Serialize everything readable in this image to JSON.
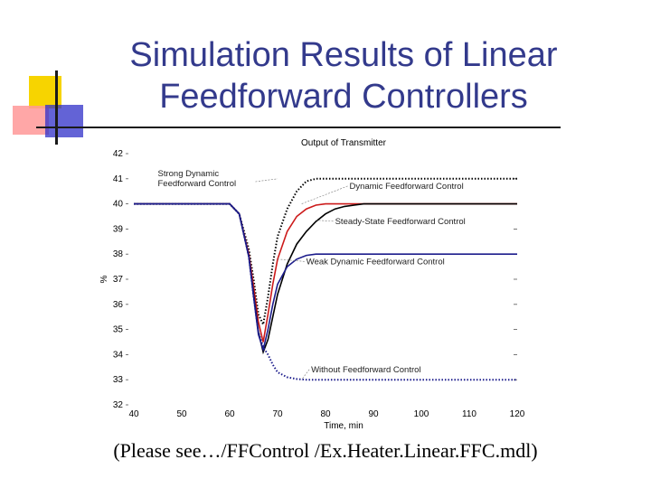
{
  "slide": {
    "title": "Simulation Results of Linear Feedforward Controllers",
    "caption": "(Please see…/FFControl /Ex.Heater.Linear.FFC.mdl)"
  },
  "chart_data": {
    "type": "line",
    "title": "Output of Transmitter",
    "xlabel": "Time, min",
    "ylabel": "%",
    "xlim": [
      40,
      120
    ],
    "ylim": [
      32,
      42
    ],
    "xticks": [
      40,
      50,
      60,
      70,
      80,
      90,
      100,
      110,
      120
    ],
    "yticks": [
      32,
      33,
      34,
      35,
      36,
      37,
      38,
      39,
      40,
      41,
      42
    ],
    "grid": false,
    "series": [
      {
        "name": "Strong Dynamic Feedforward Control",
        "color": "#000000",
        "style": "dotted",
        "x": [
          40,
          60,
          62,
          64,
          65,
          66,
          67,
          68,
          69,
          70,
          72,
          74,
          76,
          78,
          80,
          85,
          90,
          100,
          120
        ],
        "y": [
          40,
          40,
          39.6,
          38.2,
          37.0,
          35.6,
          35.2,
          36.3,
          37.6,
          38.7,
          39.8,
          40.5,
          40.9,
          41.0,
          41.0,
          41.0,
          41.0,
          41.0,
          41.0
        ]
      },
      {
        "name": "Dynamic Feedforward Control",
        "color": "#cc1a1a",
        "style": "solid",
        "x": [
          40,
          60,
          62,
          64,
          65,
          66,
          67,
          68,
          69,
          70,
          72,
          74,
          76,
          78,
          80,
          85,
          90,
          100,
          120
        ],
        "y": [
          40,
          40,
          39.6,
          38.0,
          36.7,
          35.3,
          34.5,
          35.6,
          36.8,
          37.8,
          38.9,
          39.5,
          39.8,
          39.95,
          40.0,
          40.0,
          40.0,
          40.0,
          40.0
        ]
      },
      {
        "name": "Steady-State Feedforward Control",
        "color": "#000000",
        "style": "solid",
        "x": [
          40,
          60,
          62,
          64,
          65,
          66,
          67,
          68,
          69,
          70,
          72,
          74,
          76,
          78,
          80,
          82,
          84,
          86,
          88,
          90,
          100,
          120
        ],
        "y": [
          40,
          40,
          39.6,
          37.9,
          36.4,
          34.9,
          34.1,
          34.6,
          35.5,
          36.4,
          37.6,
          38.4,
          38.9,
          39.3,
          39.6,
          39.8,
          39.9,
          39.95,
          40.0,
          40.0,
          40.0,
          40.0
        ]
      },
      {
        "name": "Weak Dynamic Feedforward Control",
        "color": "#1c1c8c",
        "style": "solid",
        "x": [
          40,
          60,
          62,
          64,
          65,
          66,
          67,
          68,
          69,
          70,
          72,
          74,
          76,
          78,
          80,
          85,
          90,
          100,
          120
        ],
        "y": [
          40,
          40,
          39.6,
          37.9,
          36.3,
          34.8,
          34.2,
          35.0,
          36.0,
          36.8,
          37.5,
          37.8,
          37.95,
          38.0,
          38.0,
          38.0,
          38.0,
          38.0,
          38.0
        ]
      },
      {
        "name": "Without Feedforward Control",
        "color": "#1c1c8c",
        "style": "dotted",
        "x": [
          40,
          60,
          62,
          64,
          65,
          66,
          67,
          68,
          69,
          70,
          72,
          74,
          76,
          78,
          80,
          85,
          90,
          100,
          120
        ],
        "y": [
          40,
          40,
          39.6,
          37.9,
          36.3,
          34.9,
          34.3,
          34.0,
          33.6,
          33.3,
          33.1,
          33.03,
          33.0,
          33.0,
          33.0,
          33.0,
          33.0,
          33.0,
          33.0
        ]
      }
    ],
    "annotations": [
      {
        "text": "Strong Dynamic\nFeedforward Control",
        "x": 45,
        "y": 41.1,
        "target": [
          70,
          41.0
        ]
      },
      {
        "text": "Dynamic Feedforward Control",
        "x": 85,
        "y": 40.6,
        "target": [
          75,
          40.0
        ]
      },
      {
        "text": "Steady-State Feedforward Control",
        "x": 82,
        "y": 39.2,
        "target": [
          78,
          39.35
        ]
      },
      {
        "text": "Weak Dynamic Feedforward Control",
        "x": 76,
        "y": 37.6,
        "target": [
          70,
          37.8
        ]
      },
      {
        "text": "Without Feedforward Control",
        "x": 77,
        "y": 33.3,
        "target": [
          75,
          33.0
        ]
      }
    ]
  }
}
